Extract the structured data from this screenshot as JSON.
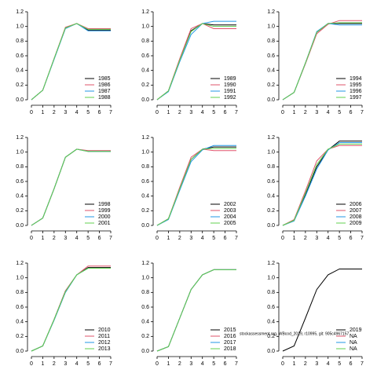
{
  "chart_data": [
    {
      "type": "line",
      "x": [
        0,
        1,
        2,
        3,
        4,
        5,
        6,
        7
      ],
      "xlim": [
        0,
        7
      ],
      "ylim": [
        0,
        1.2
      ],
      "xticks": [
        0,
        1,
        2,
        3,
        4,
        5,
        6,
        7
      ],
      "yticks": [
        {
          "value": 0,
          "label": "0.0"
        },
        0.2,
        0.4,
        0.6,
        0.8,
        {
          "value": 1,
          "label": "1.0"
        },
        1.2
      ],
      "legend": "bottom-right",
      "series": [
        {
          "name": "1985",
          "color": "#000000",
          "values": [
            0,
            0.13,
            0.56,
            0.98,
            1.04,
            0.95,
            0.95,
            0.95
          ]
        },
        {
          "name": "1986",
          "color": "#df536b",
          "values": [
            0,
            0.13,
            0.56,
            0.99,
            1.04,
            0.97,
            0.97,
            0.97
          ]
        },
        {
          "name": "1987",
          "color": "#2297e6",
          "values": [
            0,
            0.13,
            0.55,
            0.97,
            1.04,
            0.94,
            0.94,
            0.94
          ]
        },
        {
          "name": "1988",
          "color": "#61d04f",
          "values": [
            0,
            0.13,
            0.56,
            0.98,
            1.04,
            0.96,
            0.96,
            0.96
          ]
        }
      ]
    },
    {
      "type": "line",
      "x": [
        0,
        1,
        2,
        3,
        4,
        5,
        6,
        7
      ],
      "xlim": [
        0,
        7
      ],
      "ylim": [
        0,
        1.2
      ],
      "xticks": [
        0,
        1,
        2,
        3,
        4,
        5,
        6,
        7
      ],
      "yticks": [
        {
          "value": 0,
          "label": "0.0"
        },
        0.2,
        0.4,
        0.6,
        0.8,
        {
          "value": 1,
          "label": "1.0"
        },
        1.2
      ],
      "legend": "bottom-right",
      "series": [
        {
          "name": "1989",
          "color": "#000000",
          "values": [
            0,
            0.12,
            0.55,
            0.94,
            1.04,
            1.02,
            1.02,
            1.02
          ]
        },
        {
          "name": "1990",
          "color": "#df536b",
          "values": [
            0,
            0.12,
            0.56,
            0.97,
            1.04,
            0.97,
            0.97,
            0.97
          ]
        },
        {
          "name": "1991",
          "color": "#2297e6",
          "values": [
            0,
            0.11,
            0.52,
            0.89,
            1.04,
            1.07,
            1.07,
            1.07
          ]
        },
        {
          "name": "1992",
          "color": "#61d04f",
          "values": [
            0,
            0.12,
            0.54,
            0.93,
            1.04,
            1.0,
            1.0,
            1.0
          ]
        }
      ]
    },
    {
      "type": "line",
      "x": [
        0,
        1,
        2,
        3,
        4,
        5,
        6,
        7
      ],
      "xlim": [
        0,
        7
      ],
      "ylim": [
        0,
        1.2
      ],
      "xticks": [
        0,
        1,
        2,
        3,
        4,
        5,
        6,
        7
      ],
      "yticks": [
        {
          "value": 0,
          "label": "0.0"
        },
        0.2,
        0.4,
        0.6,
        0.8,
        {
          "value": 1,
          "label": "1.0"
        },
        1.2
      ],
      "legend": "bottom-right",
      "series": [
        {
          "name": "1994",
          "color": "#000000",
          "values": [
            0,
            0.1,
            0.5,
            0.92,
            1.04,
            1.04,
            1.04,
            1.04
          ]
        },
        {
          "name": "1995",
          "color": "#df536b",
          "values": [
            0,
            0.1,
            0.49,
            0.9,
            1.03,
            1.08,
            1.08,
            1.08
          ]
        },
        {
          "name": "1996",
          "color": "#2297e6",
          "values": [
            0,
            0.1,
            0.5,
            0.93,
            1.04,
            1.02,
            1.02,
            1.02
          ]
        },
        {
          "name": "1997",
          "color": "#61d04f",
          "values": [
            0,
            0.1,
            0.5,
            0.92,
            1.04,
            1.05,
            1.05,
            1.05
          ]
        }
      ]
    },
    {
      "type": "line",
      "x": [
        0,
        1,
        2,
        3,
        4,
        5,
        6,
        7
      ],
      "xlim": [
        0,
        7
      ],
      "ylim": [
        0,
        1.2
      ],
      "xticks": [
        0,
        1,
        2,
        3,
        4,
        5,
        6,
        7
      ],
      "yticks": [
        {
          "value": 0,
          "label": "0.0"
        },
        0.2,
        0.4,
        0.6,
        0.8,
        {
          "value": 1,
          "label": "1.0"
        },
        1.2
      ],
      "legend": "bottom-right",
      "series": [
        {
          "name": "1998",
          "color": "#000000",
          "values": [
            0,
            0.1,
            0.5,
            0.93,
            1.04,
            1.01,
            1.01,
            1.01
          ]
        },
        {
          "name": "1999",
          "color": "#df536b",
          "values": [
            0,
            0.1,
            0.5,
            0.93,
            1.04,
            1.02,
            1.02,
            1.02
          ]
        },
        {
          "name": "2000",
          "color": "#2297e6",
          "values": [
            0,
            0.1,
            0.5,
            0.93,
            1.04,
            1.01,
            1.01,
            1.01
          ]
        },
        {
          "name": "2001",
          "color": "#61d04f",
          "values": [
            0,
            0.1,
            0.5,
            0.93,
            1.04,
            1.01,
            1.01,
            1.01
          ]
        }
      ]
    },
    {
      "type": "line",
      "x": [
        0,
        1,
        2,
        3,
        4,
        5,
        6,
        7
      ],
      "xlim": [
        0,
        7
      ],
      "ylim": [
        0,
        1.2
      ],
      "xticks": [
        0,
        1,
        2,
        3,
        4,
        5,
        6,
        7
      ],
      "yticks": [
        {
          "value": 0,
          "label": "0.0"
        },
        0.2,
        0.4,
        0.6,
        0.8,
        {
          "value": 1,
          "label": "1.0"
        },
        1.2
      ],
      "legend": "bottom-right",
      "series": [
        {
          "name": "2002",
          "color": "#000000",
          "values": [
            0,
            0.09,
            0.5,
            0.9,
            1.04,
            1.07,
            1.07,
            1.07
          ]
        },
        {
          "name": "2003",
          "color": "#df536b",
          "values": [
            0,
            0.09,
            0.52,
            0.93,
            1.04,
            1.02,
            1.02,
            1.02
          ]
        },
        {
          "name": "2004",
          "color": "#2297e6",
          "values": [
            0,
            0.08,
            0.48,
            0.87,
            1.03,
            1.09,
            1.09,
            1.09
          ]
        },
        {
          "name": "2005",
          "color": "#61d04f",
          "values": [
            0,
            0.09,
            0.5,
            0.9,
            1.04,
            1.05,
            1.05,
            1.05
          ]
        }
      ]
    },
    {
      "type": "line",
      "x": [
        0,
        1,
        2,
        3,
        4,
        5,
        6,
        7
      ],
      "xlim": [
        0,
        7
      ],
      "ylim": [
        0,
        1.2
      ],
      "xticks": [
        0,
        1,
        2,
        3,
        4,
        5,
        6,
        7
      ],
      "yticks": [
        {
          "value": 0,
          "label": "0.0"
        },
        0.2,
        0.4,
        0.6,
        0.8,
        {
          "value": 1,
          "label": "1.0"
        },
        1.2
      ],
      "legend": "bottom-right",
      "series": [
        {
          "name": "2006",
          "color": "#000000",
          "values": [
            0,
            0.07,
            0.42,
            0.8,
            1.03,
            1.15,
            1.15,
            1.15
          ]
        },
        {
          "name": "2007",
          "color": "#df536b",
          "values": [
            0,
            0.08,
            0.47,
            0.88,
            1.04,
            1.09,
            1.09,
            1.09
          ]
        },
        {
          "name": "2008",
          "color": "#2297e6",
          "values": [
            0,
            0.06,
            0.4,
            0.77,
            1.03,
            1.13,
            1.13,
            1.13
          ]
        },
        {
          "name": "2009",
          "color": "#61d04f",
          "values": [
            0,
            0.07,
            0.44,
            0.83,
            1.04,
            1.11,
            1.11,
            1.11
          ]
        }
      ]
    },
    {
      "type": "line",
      "x": [
        0,
        1,
        2,
        3,
        4,
        5,
        6,
        7
      ],
      "xlim": [
        0,
        7
      ],
      "ylim": [
        0,
        1.2
      ],
      "xticks": [
        0,
        1,
        2,
        3,
        4,
        5,
        6,
        7
      ],
      "yticks": [
        {
          "value": 0,
          "label": "0.0"
        },
        0.2,
        0.4,
        0.6,
        0.8,
        {
          "value": 1,
          "label": "1.0"
        },
        1.2
      ],
      "legend": "bottom-right",
      "series": [
        {
          "name": "2010",
          "color": "#000000",
          "values": [
            0,
            0.07,
            0.43,
            0.82,
            1.04,
            1.14,
            1.14,
            1.14
          ]
        },
        {
          "name": "2011",
          "color": "#df536b",
          "values": [
            0,
            0.07,
            0.43,
            0.82,
            1.04,
            1.16,
            1.16,
            1.16
          ]
        },
        {
          "name": "2012",
          "color": "#2297e6",
          "values": [
            0,
            0.07,
            0.42,
            0.8,
            1.04,
            1.13,
            1.13,
            1.13
          ]
        },
        {
          "name": "2013",
          "color": "#61d04f",
          "values": [
            0,
            0.07,
            0.43,
            0.81,
            1.04,
            1.13,
            1.13,
            1.13
          ]
        }
      ]
    },
    {
      "type": "line",
      "x": [
        0,
        1,
        2,
        3,
        4,
        5,
        6,
        7
      ],
      "xlim": [
        0,
        7
      ],
      "ylim": [
        0,
        1.2
      ],
      "xticks": [
        0,
        1,
        2,
        3,
        4,
        5,
        6,
        7
      ],
      "yticks": [
        {
          "value": 0,
          "label": "0.0"
        },
        0.2,
        0.4,
        0.6,
        0.8,
        {
          "value": 1,
          "label": "1.0"
        },
        1.2
      ],
      "legend": "bottom-right",
      "series": [
        {
          "name": "2015",
          "color": "#000000",
          "values": [
            0,
            0.06,
            0.45,
            0.84,
            1.04,
            1.11,
            1.11,
            1.11
          ]
        },
        {
          "name": "2016",
          "color": "#df536b",
          "values": [
            0,
            0.06,
            0.45,
            0.84,
            1.04,
            1.11,
            1.11,
            1.11
          ]
        },
        {
          "name": "2017",
          "color": "#2297e6",
          "values": [
            0,
            0.06,
            0.45,
            0.84,
            1.04,
            1.11,
            1.11,
            1.11
          ]
        },
        {
          "name": "2018",
          "color": "#61d04f",
          "values": [
            0,
            0.06,
            0.45,
            0.84,
            1.04,
            1.11,
            1.11,
            1.11
          ]
        }
      ]
    },
    {
      "type": "line",
      "x": [
        0,
        1,
        2,
        3,
        4,
        5,
        6,
        7
      ],
      "xlim": [
        0,
        7
      ],
      "ylim": [
        0,
        1.2
      ],
      "xticks": [
        0,
        1,
        2,
        3,
        4,
        5,
        6,
        7
      ],
      "yticks": [
        {
          "value": 0,
          "label": "0.0"
        },
        0.2,
        0.4,
        0.6,
        0.8,
        {
          "value": 1,
          "label": "1.0"
        },
        1.2
      ],
      "legend": "bottom-right",
      "annotation": "stockassessment.org, WBcod_2019, r10995, git: 905c4967157",
      "series": [
        {
          "name": "2019",
          "color": "#000000",
          "values": [
            0,
            0.07,
            0.45,
            0.84,
            1.04,
            1.12,
            1.12,
            1.12
          ]
        },
        {
          "name": "NA",
          "color": "#df536b",
          "values": [
            null,
            null,
            null,
            null,
            null,
            null,
            null,
            null
          ]
        },
        {
          "name": "NA",
          "color": "#2297e6",
          "values": [
            null,
            null,
            null,
            null,
            null,
            null,
            null,
            null
          ]
        },
        {
          "name": "NA",
          "color": "#61d04f",
          "values": [
            null,
            null,
            null,
            null,
            null,
            null,
            null,
            null
          ]
        }
      ]
    }
  ]
}
